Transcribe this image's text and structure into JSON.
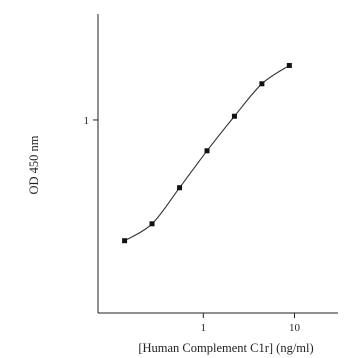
{
  "chart_data": {
    "type": "scatter",
    "title": "",
    "xlabel": "[Human Complement C1r] (ng/ml)",
    "ylabel": "OD 450 nm",
    "x_scale": "log",
    "y_scale": "log",
    "xlim": [
      0.07,
      30
    ],
    "ylim": [
      0.08,
      4
    ],
    "x_ticks": [
      {
        "value": 1,
        "label": "1"
      },
      {
        "value": 10,
        "label": "10"
      }
    ],
    "y_ticks": [
      {
        "value": 1,
        "label": "1"
      }
    ],
    "grid": false,
    "legend": "none",
    "series": [
      {
        "x": [
          0.137,
          0.274,
          0.549,
          1.098,
          2.195,
          4.39,
          8.78
        ],
        "y": [
          0.206,
          0.257,
          0.412,
          0.668,
          1.05,
          1.605,
          2.04
        ],
        "fit_curve": true
      }
    ]
  }
}
